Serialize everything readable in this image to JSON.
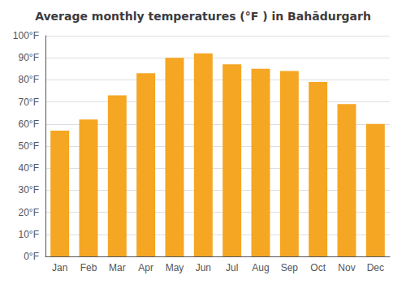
{
  "chart_data": {
    "type": "bar",
    "title": "Average monthly temperatures (°F ) in Bahādurgarh",
    "categories": [
      "Jan",
      "Feb",
      "Mar",
      "Apr",
      "May",
      "Jun",
      "Jul",
      "Aug",
      "Sep",
      "Oct",
      "Nov",
      "Dec"
    ],
    "values": [
      57,
      62,
      73,
      83,
      90,
      92,
      87,
      85,
      84,
      79,
      69,
      60
    ],
    "color": "#F5A623",
    "ylim": [
      0,
      100
    ],
    "yticks": [
      {
        "value": 0,
        "label": "0°F"
      },
      {
        "value": 10,
        "label": "10°F"
      },
      {
        "value": 20,
        "label": "20°F"
      },
      {
        "value": 30,
        "label": "30°F"
      },
      {
        "value": 40,
        "label": "40°F"
      },
      {
        "value": 50,
        "label": "50°F"
      },
      {
        "value": 60,
        "label": "60°F"
      },
      {
        "value": 70,
        "label": "70°F"
      },
      {
        "value": 80,
        "label": "80°F"
      },
      {
        "value": 90,
        "label": "90°F"
      },
      {
        "value": 100,
        "label": "100°F"
      }
    ],
    "grid": true
  }
}
